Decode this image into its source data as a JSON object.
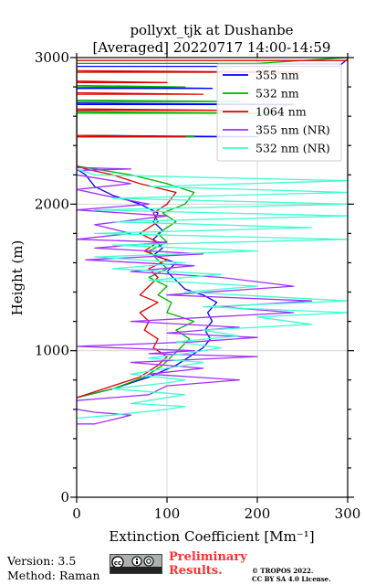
{
  "chart_data": {
    "type": "line",
    "title": "pollyxt_tjk at Dushanbe",
    "subtitle": "[Averaged] 20220717 14:00-14:59",
    "xlabel": "Extinction Coefficient [Mm⁻¹]",
    "ylabel": "Height (m)",
    "xlim": [
      0,
      300
    ],
    "ylim": [
      0,
      3000
    ],
    "xticks": [
      "0",
      "100",
      "200",
      "300"
    ],
    "yticks": [
      "0",
      "1000",
      "2000",
      "3000"
    ],
    "grid": true,
    "legend_position": "top-right",
    "series": [
      {
        "name": "355 nm",
        "color": "#0000ff",
        "points": [
          [
            0,
            680
          ],
          [
            40,
            740
          ],
          [
            80,
            820
          ],
          [
            110,
            900
          ],
          [
            125,
            960
          ],
          [
            140,
            1020
          ],
          [
            148,
            1080
          ],
          [
            142,
            1140
          ],
          [
            150,
            1200
          ],
          [
            145,
            1260
          ],
          [
            155,
            1330
          ],
          [
            140,
            1380
          ],
          [
            120,
            1420
          ],
          [
            110,
            1480
          ],
          [
            100,
            1540
          ],
          [
            110,
            1600
          ],
          [
            85,
            1650
          ],
          [
            95,
            1700
          ],
          [
            85,
            1760
          ],
          [
            95,
            1820
          ],
          [
            85,
            1880
          ],
          [
            90,
            1940
          ],
          [
            70,
            2000
          ],
          [
            40,
            2060
          ],
          [
            20,
            2120
          ],
          [
            10,
            2200
          ],
          [
            0,
            2240
          ],
          [
            0,
            2460
          ],
          [
            200,
            2460
          ],
          [
            0,
            2470
          ],
          [
            0,
            2680
          ],
          [
            240,
            2680
          ],
          [
            0,
            2690
          ],
          [
            0,
            2790
          ],
          [
            150,
            2790
          ],
          [
            0,
            2800
          ],
          [
            0,
            2940
          ],
          [
            290,
            2940
          ],
          [
            300,
            2990
          ]
        ]
      },
      {
        "name": "532 nm",
        "color": "#00b000",
        "points": [
          [
            0,
            680
          ],
          [
            40,
            740
          ],
          [
            75,
            820
          ],
          [
            95,
            900
          ],
          [
            105,
            960
          ],
          [
            115,
            1020
          ],
          [
            125,
            1080
          ],
          [
            110,
            1140
          ],
          [
            130,
            1200
          ],
          [
            100,
            1260
          ],
          [
            105,
            1330
          ],
          [
            90,
            1380
          ],
          [
            100,
            1440
          ],
          [
            80,
            1500
          ],
          [
            100,
            1560
          ],
          [
            90,
            1620
          ],
          [
            80,
            1680
          ],
          [
            100,
            1740
          ],
          [
            90,
            1800
          ],
          [
            110,
            1880
          ],
          [
            95,
            1940
          ],
          [
            120,
            2000
          ],
          [
            130,
            2080
          ],
          [
            100,
            2140
          ],
          [
            60,
            2200
          ],
          [
            20,
            2240
          ],
          [
            0,
            2260
          ],
          [
            0,
            2460
          ],
          [
            130,
            2460
          ],
          [
            0,
            2470
          ],
          [
            0,
            2620
          ],
          [
            220,
            2620
          ],
          [
            0,
            2630
          ],
          [
            0,
            2700
          ],
          [
            180,
            2700
          ],
          [
            0,
            2710
          ],
          [
            0,
            2800
          ],
          [
            120,
            2800
          ],
          [
            0,
            2810
          ],
          [
            0,
            2900
          ],
          [
            150,
            2900
          ],
          [
            0,
            2910
          ],
          [
            0,
            2960
          ],
          [
            200,
            2960
          ],
          [
            300,
            3000
          ]
        ]
      },
      {
        "name": "1064 nm",
        "color": "#e00000",
        "points": [
          [
            0,
            680
          ],
          [
            30,
            740
          ],
          [
            70,
            820
          ],
          [
            90,
            900
          ],
          [
            100,
            960
          ],
          [
            85,
            1020
          ],
          [
            90,
            1080
          ],
          [
            75,
            1140
          ],
          [
            80,
            1200
          ],
          [
            70,
            1260
          ],
          [
            90,
            1330
          ],
          [
            70,
            1380
          ],
          [
            80,
            1440
          ],
          [
            90,
            1500
          ],
          [
            80,
            1560
          ],
          [
            100,
            1620
          ],
          [
            75,
            1680
          ],
          [
            90,
            1740
          ],
          [
            70,
            1800
          ],
          [
            90,
            1880
          ],
          [
            85,
            1940
          ],
          [
            100,
            2000
          ],
          [
            110,
            2080
          ],
          [
            70,
            2140
          ],
          [
            40,
            2200
          ],
          [
            10,
            2240
          ],
          [
            0,
            2260
          ],
          [
            0,
            2460
          ],
          [
            120,
            2460
          ],
          [
            0,
            2470
          ],
          [
            0,
            2640
          ],
          [
            160,
            2640
          ],
          [
            0,
            2650
          ],
          [
            0,
            2750
          ],
          [
            140,
            2750
          ],
          [
            0,
            2760
          ],
          [
            0,
            2830
          ],
          [
            100,
            2830
          ],
          [
            0,
            2840
          ],
          [
            0,
            2900
          ],
          [
            250,
            2900
          ],
          [
            0,
            2910
          ],
          [
            0,
            2980
          ],
          [
            250,
            2980
          ],
          [
            300,
            2980
          ]
        ]
      },
      {
        "name": "355 nm (NR)",
        "color": "#a030ff",
        "points": [
          [
            0,
            500
          ],
          [
            20,
            500
          ],
          [
            40,
            530
          ],
          [
            60,
            560
          ],
          [
            20,
            580
          ],
          [
            0,
            600
          ],
          [
            0,
            660
          ],
          [
            80,
            700
          ],
          [
            100,
            760
          ],
          [
            180,
            800
          ],
          [
            80,
            840
          ],
          [
            140,
            880
          ],
          [
            60,
            920
          ],
          [
            200,
            960
          ],
          [
            80,
            980
          ],
          [
            130,
            1000
          ],
          [
            0,
            1030
          ],
          [
            130,
            1060
          ],
          [
            200,
            1090
          ],
          [
            100,
            1120
          ],
          [
            180,
            1160
          ],
          [
            60,
            1200
          ],
          [
            240,
            1260
          ],
          [
            160,
            1300
          ],
          [
            260,
            1340
          ],
          [
            100,
            1380
          ],
          [
            240,
            1440
          ],
          [
            160,
            1500
          ],
          [
            60,
            1540
          ],
          [
            130,
            1580
          ],
          [
            10,
            1620
          ],
          [
            140,
            1660
          ],
          [
            20,
            1700
          ],
          [
            100,
            1740
          ],
          [
            0,
            1760
          ],
          [
            60,
            1800
          ],
          [
            20,
            1860
          ],
          [
            100,
            1920
          ],
          [
            0,
            1960
          ],
          [
            80,
            2000
          ],
          [
            30,
            2060
          ],
          [
            0,
            2100
          ],
          [
            60,
            2140
          ],
          [
            0,
            2200
          ],
          [
            0,
            2230
          ],
          [
            60,
            2240
          ],
          [
            0,
            2250
          ]
        ]
      },
      {
        "name": "532 nm (NR)",
        "color": "#40ffd0",
        "points": [
          [
            0,
            540
          ],
          [
            40,
            560
          ],
          [
            100,
            600
          ],
          [
            120,
            620
          ],
          [
            60,
            640
          ],
          [
            80,
            660
          ],
          [
            120,
            700
          ],
          [
            40,
            740
          ],
          [
            100,
            780
          ],
          [
            120,
            800
          ],
          [
            60,
            840
          ],
          [
            100,
            880
          ],
          [
            140,
            920
          ],
          [
            80,
            950
          ],
          [
            120,
            980
          ],
          [
            160,
            1020
          ],
          [
            110,
            1060
          ],
          [
            180,
            1100
          ],
          [
            140,
            1140
          ],
          [
            260,
            1180
          ],
          [
            200,
            1230
          ],
          [
            300,
            1260
          ],
          [
            140,
            1300
          ],
          [
            300,
            1340
          ],
          [
            120,
            1400
          ],
          [
            200,
            1440
          ],
          [
            80,
            1480
          ],
          [
            160,
            1520
          ],
          [
            40,
            1560
          ],
          [
            120,
            1600
          ],
          [
            20,
            1640
          ],
          [
            200,
            1680
          ],
          [
            40,
            1720
          ],
          [
            300,
            1760
          ],
          [
            20,
            1800
          ],
          [
            260,
            1840
          ],
          [
            40,
            1880
          ],
          [
            300,
            1920
          ],
          [
            20,
            1960
          ],
          [
            300,
            2000
          ],
          [
            40,
            2040
          ],
          [
            300,
            2080
          ],
          [
            80,
            2120
          ],
          [
            300,
            2160
          ],
          [
            20,
            2200
          ],
          [
            0,
            2240
          ]
        ]
      }
    ]
  },
  "footer": {
    "version": "Version: 3.5",
    "method": "Method: Raman",
    "cc_label": "cc",
    "preliminary_line1": "Preliminary",
    "preliminary_line2": "Results.",
    "copyright_line1": "© TROPOS 2022.",
    "copyright_line2": "CC BY SA 4.0 License."
  }
}
